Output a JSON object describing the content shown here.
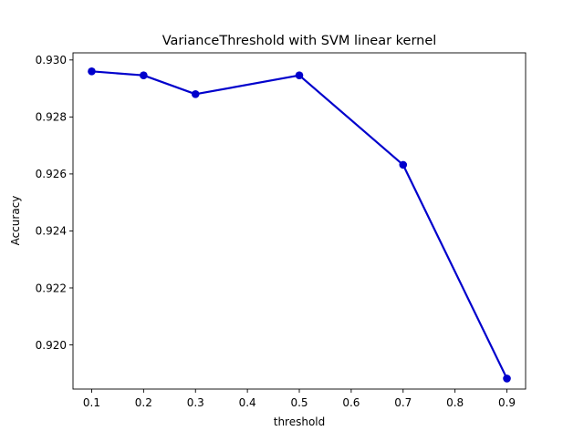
{
  "chart_data": {
    "type": "line",
    "title": "VarianceThreshold with SVM linear kernel",
    "xlabel": "threshold",
    "ylabel": "Accuracy",
    "xlim": [
      0.064,
      0.936
    ],
    "ylim": [
      0.91845,
      0.93025
    ],
    "x_ticks": [
      0.1,
      0.2,
      0.3,
      0.4,
      0.5,
      0.6,
      0.7,
      0.8,
      0.9
    ],
    "x_tick_labels": [
      "0.1",
      "0.2",
      "0.3",
      "0.4",
      "0.5",
      "0.6",
      "0.7",
      "0.8",
      "0.9"
    ],
    "y_ticks": [
      0.92,
      0.922,
      0.924,
      0.926,
      0.928,
      0.93
    ],
    "y_tick_labels": [
      "0.920",
      "0.922",
      "0.924",
      "0.926",
      "0.928",
      "0.930"
    ],
    "grid": false,
    "legend": "none",
    "series": [
      {
        "color": "#0000cc",
        "marker": "circle",
        "x": [
          0.1,
          0.2,
          0.3,
          0.5,
          0.7,
          0.9
        ],
        "y": [
          0.9296,
          0.92946,
          0.9288,
          0.92946,
          0.92632,
          0.91882
        ]
      }
    ]
  }
}
